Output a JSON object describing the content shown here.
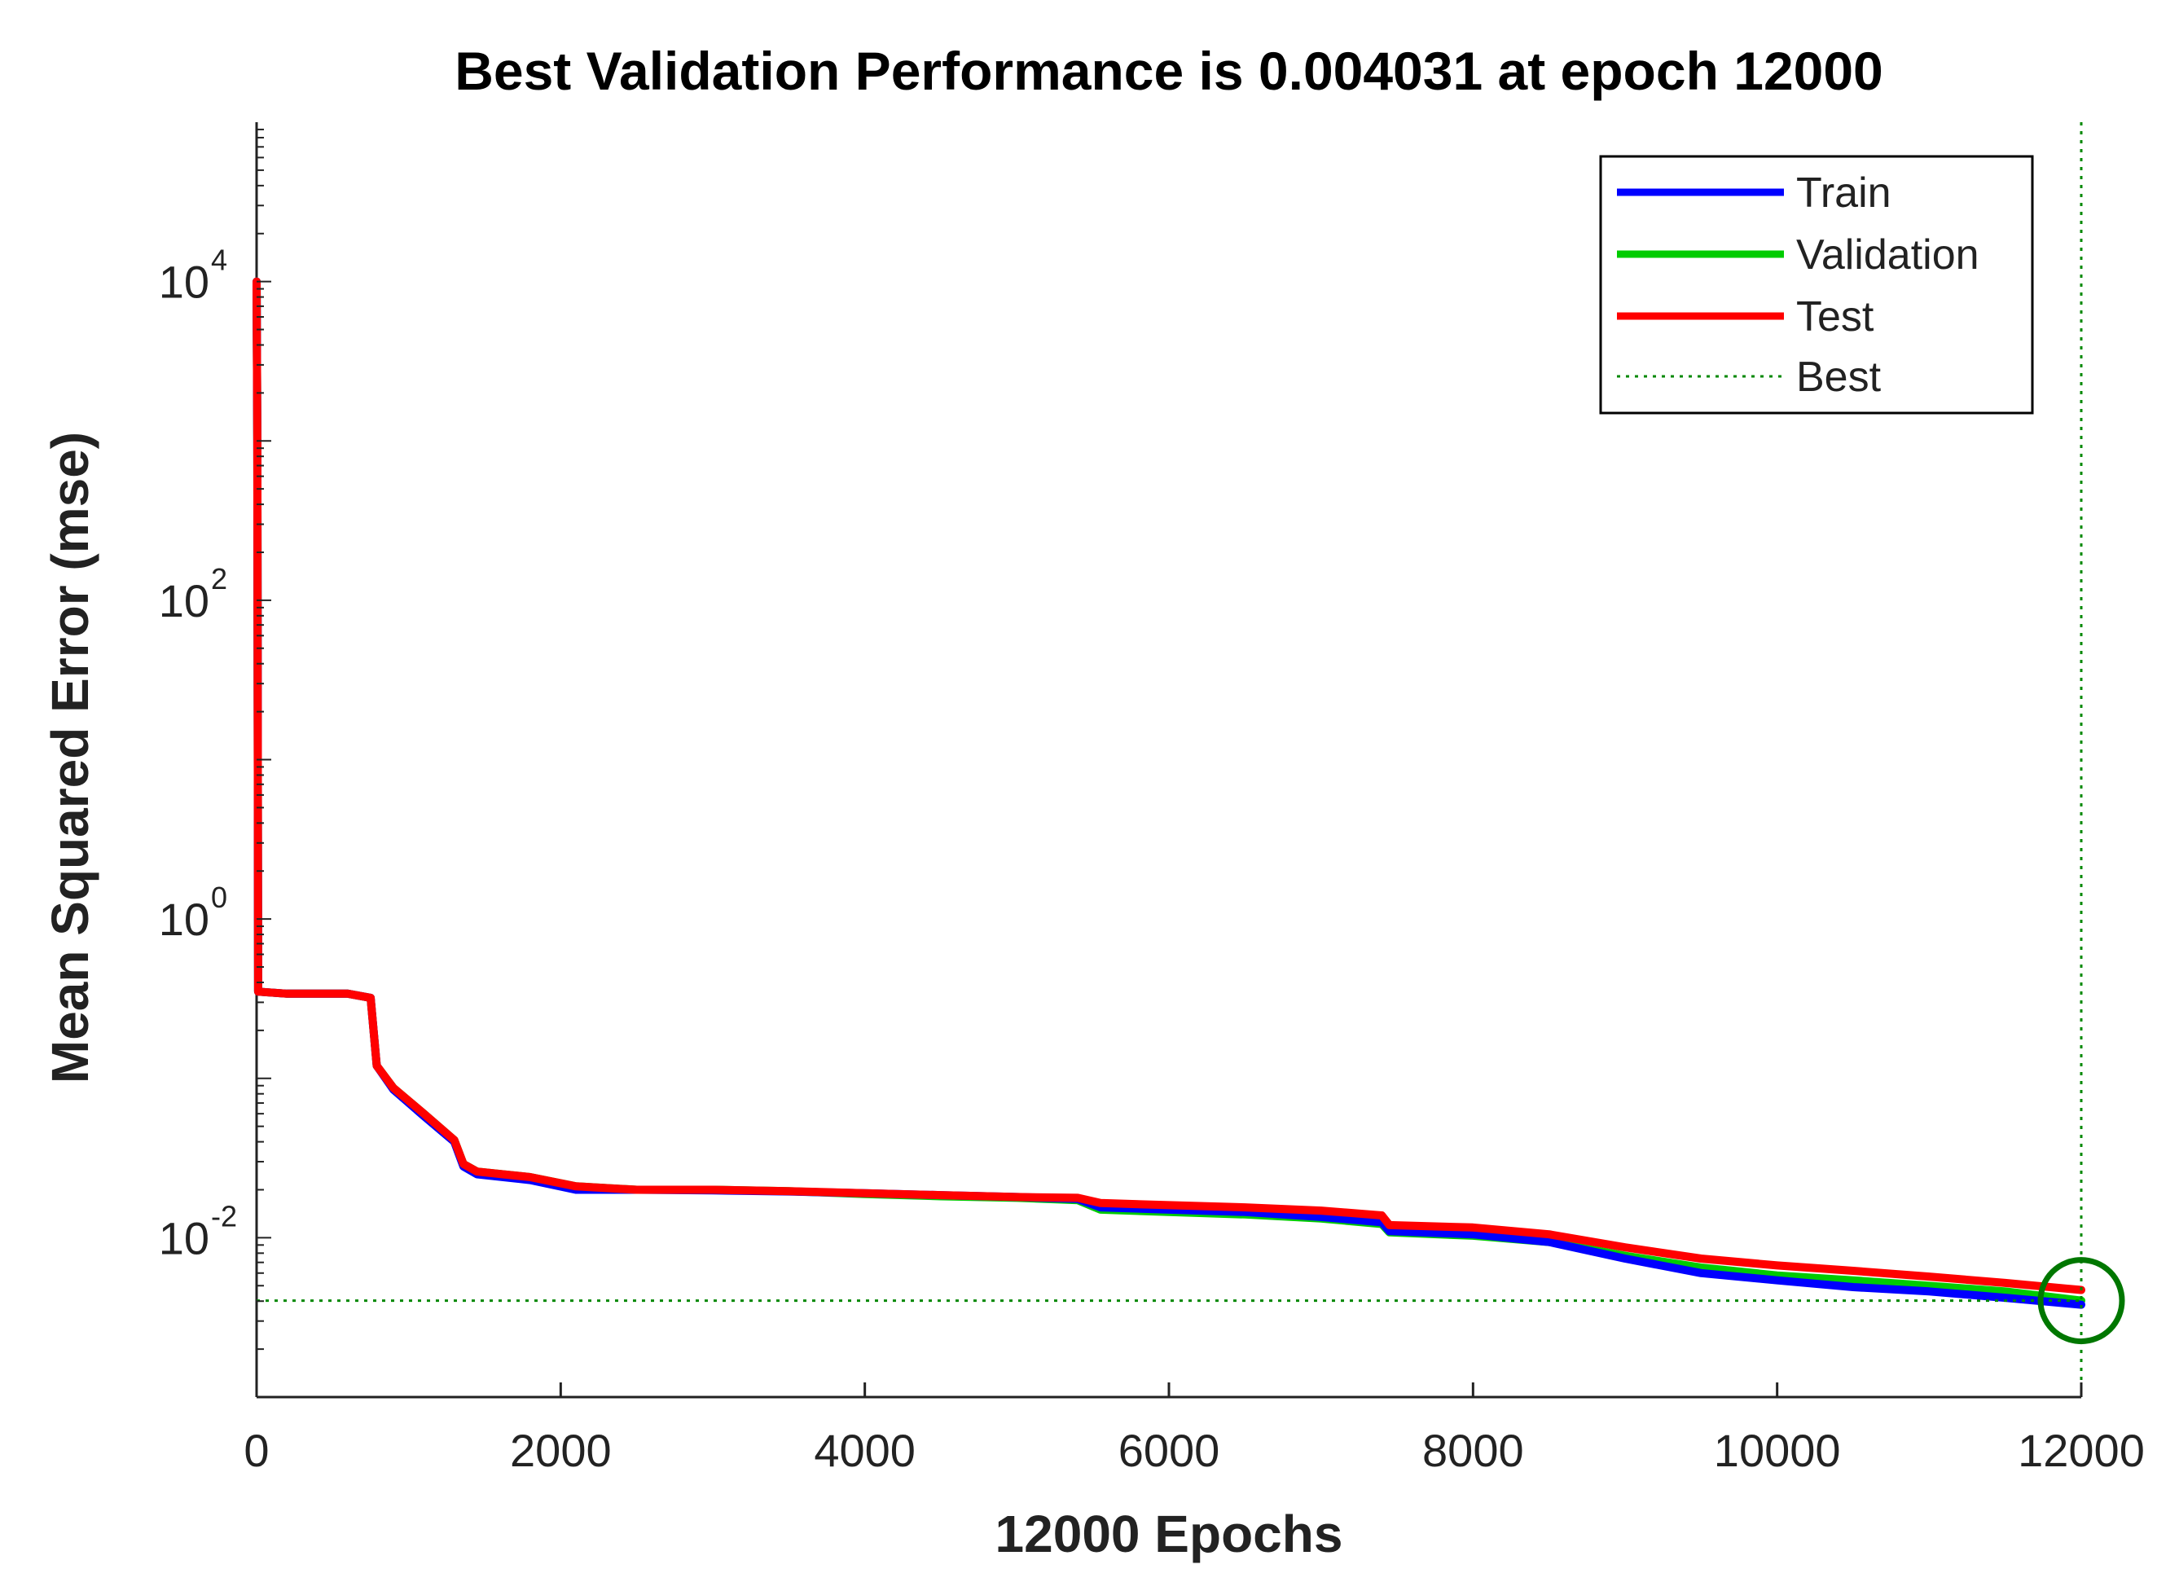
{
  "chart_data": {
    "type": "line",
    "title": "Best Validation Performance is 0.004031 at epoch 12000",
    "xlabel": "12000 Epochs",
    "ylabel": "Mean Squared Error  (mse)",
    "xscale": "linear",
    "yscale": "log",
    "xlim": [
      0,
      12000
    ],
    "ylim": [
      0.001,
      100000
    ],
    "xticks": [
      0,
      2000,
      4000,
      6000,
      8000,
      10000,
      12000
    ],
    "xtick_labels": [
      "0",
      "2000",
      "4000",
      "6000",
      "8000",
      "10000",
      "12000"
    ],
    "yticks": [
      {
        "value": 0.01,
        "base": "10",
        "exp": "-2"
      },
      {
        "value": 1,
        "base": "10",
        "exp": "0"
      },
      {
        "value": 100,
        "base": "10",
        "exp": "2"
      },
      {
        "value": 10000,
        "base": "10",
        "exp": "4"
      }
    ],
    "legend_position": "top-right",
    "series": [
      {
        "name": "Train",
        "color": "#0000ff",
        "style": "solid",
        "x": [
          0,
          5,
          10,
          200,
          600,
          750,
          790,
          900,
          1100,
          1300,
          1360,
          1450,
          1800,
          2100,
          2500,
          3000,
          3500,
          4000,
          4500,
          5000,
          5400,
          5550,
          6000,
          6500,
          7000,
          7400,
          7450,
          8000,
          8500,
          9000,
          9500,
          10000,
          10500,
          11000,
          11500,
          12000
        ],
        "y": [
          10000,
          1000,
          0.35,
          0.34,
          0.34,
          0.32,
          0.12,
          0.085,
          0.058,
          0.04,
          0.028,
          0.025,
          0.023,
          0.02,
          0.02,
          0.0198,
          0.0195,
          0.019,
          0.0185,
          0.018,
          0.0175,
          0.0155,
          0.015,
          0.0145,
          0.0135,
          0.0125,
          0.011,
          0.0105,
          0.0094,
          0.0074,
          0.006,
          0.0054,
          0.0049,
          0.0046,
          0.0042,
          0.0038
        ]
      },
      {
        "name": "Validation",
        "color": "#00cc00",
        "style": "solid",
        "x": [
          0,
          5,
          10,
          200,
          600,
          750,
          790,
          900,
          1100,
          1300,
          1360,
          1450,
          1800,
          2100,
          2500,
          3000,
          3500,
          4000,
          4500,
          5000,
          5400,
          5550,
          6000,
          6500,
          7000,
          7400,
          7450,
          8000,
          8500,
          9000,
          9500,
          10000,
          10500,
          11000,
          11500,
          12000
        ],
        "y": [
          10000,
          1000,
          0.35,
          0.34,
          0.34,
          0.32,
          0.12,
          0.087,
          0.06,
          0.041,
          0.029,
          0.026,
          0.024,
          0.021,
          0.02,
          0.02,
          0.0196,
          0.0188,
          0.0182,
          0.0178,
          0.0172,
          0.015,
          0.0145,
          0.014,
          0.0132,
          0.0122,
          0.0108,
          0.0103,
          0.0094,
          0.0077,
          0.0065,
          0.0058,
          0.0054,
          0.005,
          0.0046,
          0.004031
        ]
      },
      {
        "name": "Test",
        "color": "#ff0000",
        "style": "solid",
        "x": [
          0,
          5,
          10,
          200,
          600,
          750,
          790,
          900,
          1100,
          1300,
          1360,
          1450,
          1800,
          2100,
          2500,
          3000,
          3500,
          4000,
          4500,
          5000,
          5400,
          5550,
          6000,
          6500,
          7000,
          7400,
          7450,
          8000,
          8500,
          9000,
          9500,
          10000,
          10500,
          11000,
          11500,
          12000
        ],
        "y": [
          10000,
          1000,
          0.35,
          0.34,
          0.34,
          0.32,
          0.12,
          0.087,
          0.06,
          0.041,
          0.029,
          0.026,
          0.024,
          0.021,
          0.02,
          0.02,
          0.0196,
          0.019,
          0.0185,
          0.018,
          0.0178,
          0.0165,
          0.016,
          0.0155,
          0.0148,
          0.0138,
          0.012,
          0.0116,
          0.0105,
          0.0087,
          0.0074,
          0.0067,
          0.0062,
          0.0057,
          0.0052,
          0.0047
        ]
      }
    ],
    "best": {
      "name": "Best",
      "color": "#008800",
      "style": "dotted",
      "epoch": 12000,
      "value": 0.004031
    }
  }
}
